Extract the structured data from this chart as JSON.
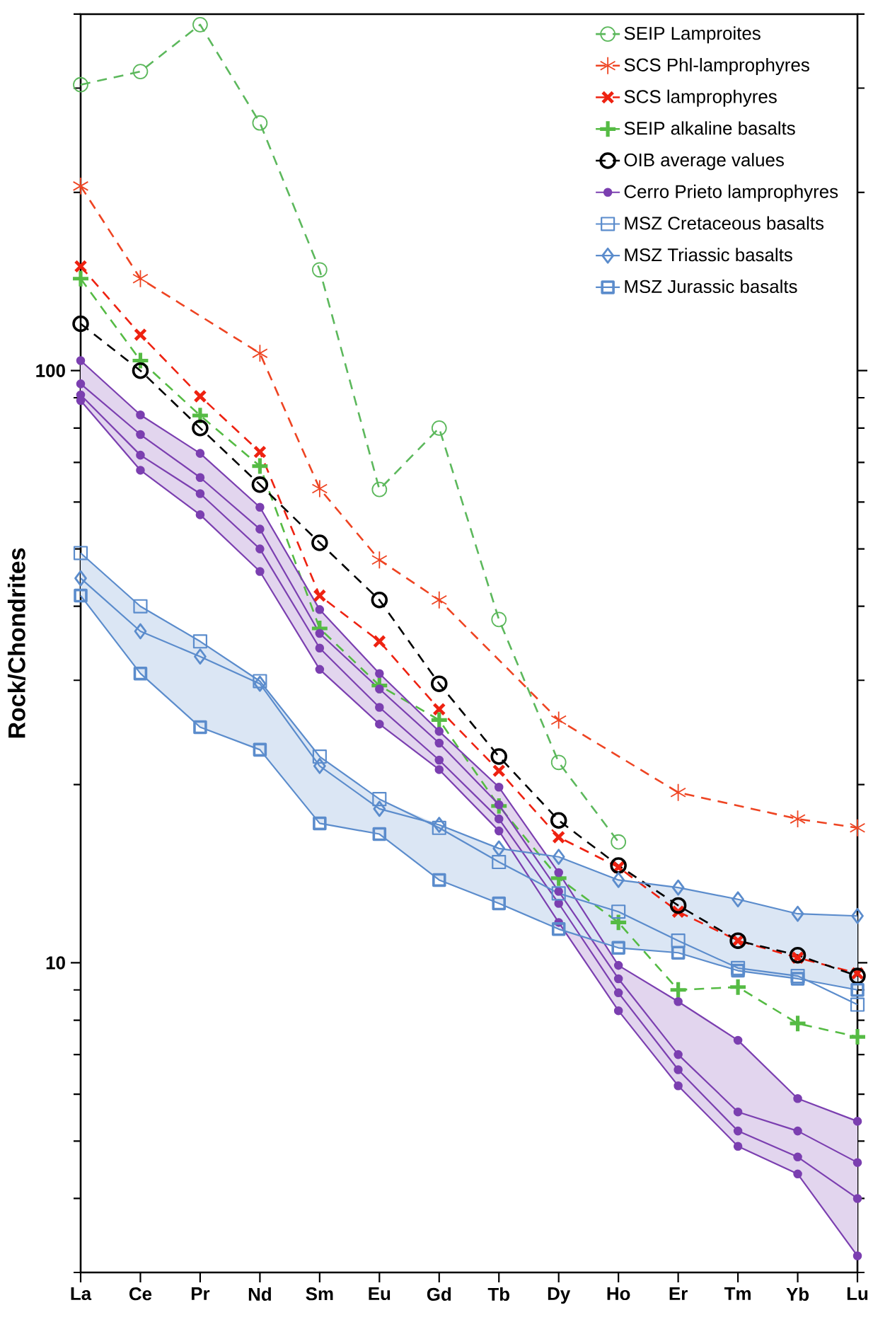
{
  "chart_data": {
    "type": "line",
    "ylabel": "Rock/Chondrites",
    "log": true,
    "legend": "top right",
    "categories": [
      "La",
      "Ce",
      "Pr",
      "Nd",
      "Sm",
      "Eu",
      "Gd",
      "Tb",
      "Dy",
      "Ho",
      "Er",
      "Tm",
      "Yb",
      "Lu"
    ],
    "ylim": [
      3,
      400
    ],
    "yticks": [
      10,
      100
    ],
    "series": [
      {
        "name": "SEIP Lamproites",
        "color": "#5cb85c",
        "marker": "circle",
        "line_style": "dashed",
        "values": [
          304,
          320,
          384,
          262,
          148,
          63,
          80,
          38,
          21.8,
          16,
          null,
          null,
          null,
          null
        ]
      },
      {
        "name": "SCS Phl-lamprophyres",
        "color": "#ee4422",
        "marker": "cross",
        "line_style": "dashed",
        "values": [
          205,
          143,
          null,
          107,
          63.2,
          47.9,
          41.0,
          null,
          25.7,
          null,
          19.4,
          null,
          17.5,
          16.9
        ]
      },
      {
        "name": "SCS lamprophyres",
        "color": "#ee2211",
        "marker": "cross",
        "line_style": "dashed",
        "values": [
          150,
          115,
          90.5,
          72.9,
          41.7,
          34.9,
          26.8,
          21.1,
          16.3,
          14.5,
          12.2,
          10.9,
          10.2,
          9.6
        ]
      },
      {
        "name": "SEIP alkaline basalts",
        "color": "#55bb44",
        "marker": "cross",
        "line_style": "dashed",
        "values": [
          143,
          104,
          84,
          69,
          36.7,
          29.4,
          25.7,
          18.4,
          13.9,
          11.7,
          9.0,
          9.1,
          7.9,
          7.5
        ]
      },
      {
        "name": "OIB average values",
        "color": "#000000",
        "marker": "circle",
        "line_style": "dashed",
        "values": [
          120,
          100,
          80,
          64.2,
          51.2,
          41.0,
          29.6,
          22.3,
          17.4,
          14.6,
          12.5,
          10.9,
          10.3,
          9.5
        ]
      },
      {
        "name": "Cerro Prieto lamprophyres",
        "color": "#7b3fb0",
        "marker": "circle",
        "line_style": "solid",
        "values": [
          104,
          84.2,
          72.5,
          58.8,
          39.5,
          30.8,
          24.6,
          19.8,
          14.2,
          9.9,
          8.6,
          7.4,
          5.9,
          5.4
        ],
        "upper": [
          104,
          84.2,
          72.5,
          58.8,
          39.5,
          30.8,
          24.6,
          19.8,
          14.2,
          9.9,
          8.6,
          7.4,
          5.9,
          5.4
        ],
        "lower": [
          89,
          67.9,
          57.1,
          45.8,
          31.3,
          25.3,
          21.2,
          16.7,
          11.7,
          8.3,
          6.2,
          4.9,
          4.4,
          3.2
        ]
      },
      {
        "color": "#7b3fb0",
        "marker": "circle",
        "line_style": "solid",
        "values": [
          95,
          78,
          66,
          54,
          36,
          29,
          23.5,
          18.5,
          13.2,
          9.4,
          7.0,
          5.6,
          5.2,
          4.6
        ]
      },
      {
        "color": "#7b3fb0",
        "marker": "circle",
        "line_style": "solid",
        "values": [
          91,
          72,
          62,
          50,
          34,
          27,
          22,
          17.5,
          12.6,
          8.9,
          6.6,
          5.2,
          4.7,
          4.0
        ]
      },
      {
        "color": "#7b3fb0",
        "marker": "circle",
        "line_style": "solid",
        "values": [
          89,
          67.9,
          57.1,
          45.8,
          31.3,
          25.3,
          21.2,
          16.7,
          11.7,
          8.3,
          6.2,
          4.9,
          4.4,
          3.2
        ]
      },
      {
        "name": "MSZ Cretaceous basalts",
        "color": "#5b8ccc",
        "marker": "square",
        "line_style": "solid",
        "values": [
          49.2,
          40.0,
          34.9,
          29.9,
          22.3,
          18.9,
          16.9,
          14.8,
          13.1,
          12.2,
          10.9,
          9.8,
          9.5,
          8.5
        ],
        "upper": [
          49.2,
          40.0,
          34.9,
          29.9,
          22.3,
          18.9,
          17.1,
          15.6,
          15.1,
          13.8,
          13.4,
          12.8,
          12.1,
          12.0
        ],
        "lower": [
          41.7,
          30.8,
          25.0,
          22.9,
          17.2,
          16.5,
          13.8,
          12.6,
          11.4,
          10.6,
          10.4,
          9.7,
          9.4,
          9.0
        ]
      },
      {
        "name": "MSZ Triassic basalts",
        "color": "#5b8ccc",
        "marker": "diamond",
        "line_style": "solid",
        "values": [
          44.6,
          36.3,
          32.9,
          29.6,
          21.5,
          18.2,
          17.1,
          15.6,
          15.1,
          13.8,
          13.4,
          12.8,
          12.1,
          12.0
        ]
      },
      {
        "name": "MSZ Jurassic basalts",
        "color": "#5b8ccc",
        "marker": "square",
        "line_style": "solid",
        "values": [
          41.7,
          30.8,
          25.0,
          22.9,
          17.2,
          16.5,
          13.8,
          12.6,
          11.4,
          10.6,
          10.4,
          9.7,
          9.4,
          9.0
        ]
      }
    ]
  }
}
